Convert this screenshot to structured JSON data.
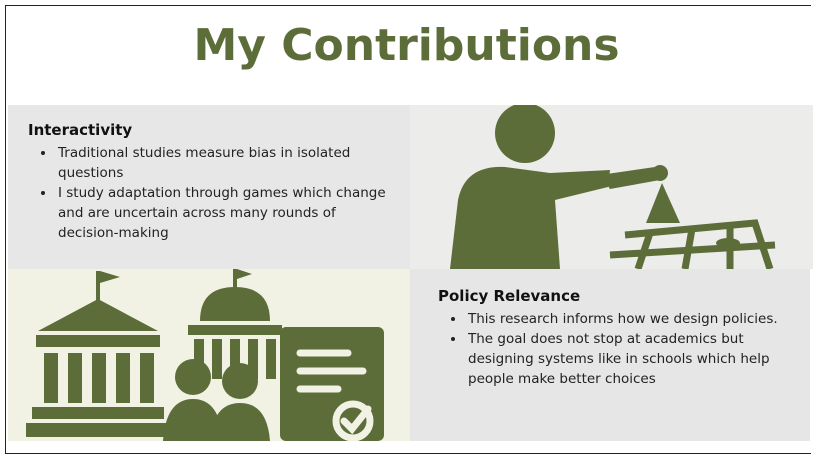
{
  "title": "My Contributions",
  "sections": [
    {
      "heading": "Interactivity",
      "bullets": [
        "Traditional studies measure bias in isolated questions",
        "I study adaptation through games which change and are uncertain across many rounds of decision-making"
      ]
    },
    {
      "heading": "Policy Relevance",
      "bullets": [
        "This research informs how we design policies.",
        "The goal does not stop at academics but designing systems like in schools which help people make better choices"
      ]
    }
  ]
}
